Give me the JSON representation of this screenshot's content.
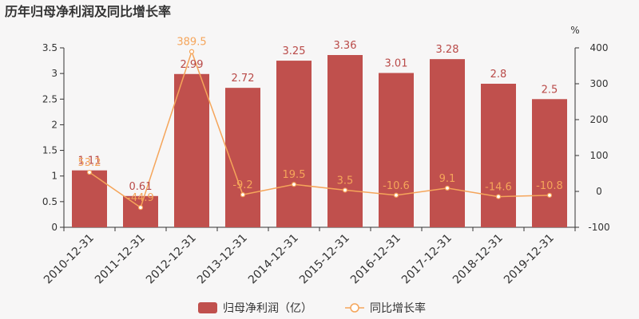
{
  "chart_data": {
    "title": "历年归母净利润及同比增长率",
    "type": "bar+line",
    "categories": [
      "2010-12-31",
      "2011-12-31",
      "2012-12-31",
      "2013-12-31",
      "2014-12-31",
      "2015-12-31",
      "2016-12-31",
      "2017-12-31",
      "2018-12-31",
      "2019-12-31"
    ],
    "series": [
      {
        "name": "归母净利润（亿）",
        "type": "bar",
        "axis": "left",
        "color": "#c0504d",
        "values": [
          1.11,
          0.61,
          2.99,
          2.72,
          3.25,
          3.36,
          3.01,
          3.28,
          2.8,
          2.5
        ],
        "labels": [
          "1.11",
          "0.61",
          "2.99",
          "2.72",
          "3.25",
          "3.36",
          "3.01",
          "3.28",
          "2.8",
          "2.5"
        ]
      },
      {
        "name": "同比增长率",
        "type": "line",
        "axis": "right",
        "color": "#f5a55a",
        "values": [
          53.2,
          -44.9,
          389.5,
          -9.2,
          19.5,
          3.5,
          -10.6,
          9.1,
          -14.6,
          -10.8
        ],
        "labels": [
          "53.2",
          "-44.9",
          "389.5",
          "-9.2",
          "19.5",
          "3.5",
          "-10.6",
          "9.1",
          "-14.6",
          "-10.8"
        ]
      }
    ],
    "y_left": {
      "min": 0,
      "max": 3.5,
      "ticks": [
        "0",
        "0.5",
        "1",
        "1.5",
        "2",
        "2.5",
        "3",
        "3.5"
      ]
    },
    "y_right": {
      "min": -100,
      "max": 400,
      "unit": "%",
      "ticks": [
        "-100",
        "0",
        "100",
        "200",
        "300",
        "400"
      ]
    },
    "legend_position": "bottom-center",
    "grid": false
  }
}
